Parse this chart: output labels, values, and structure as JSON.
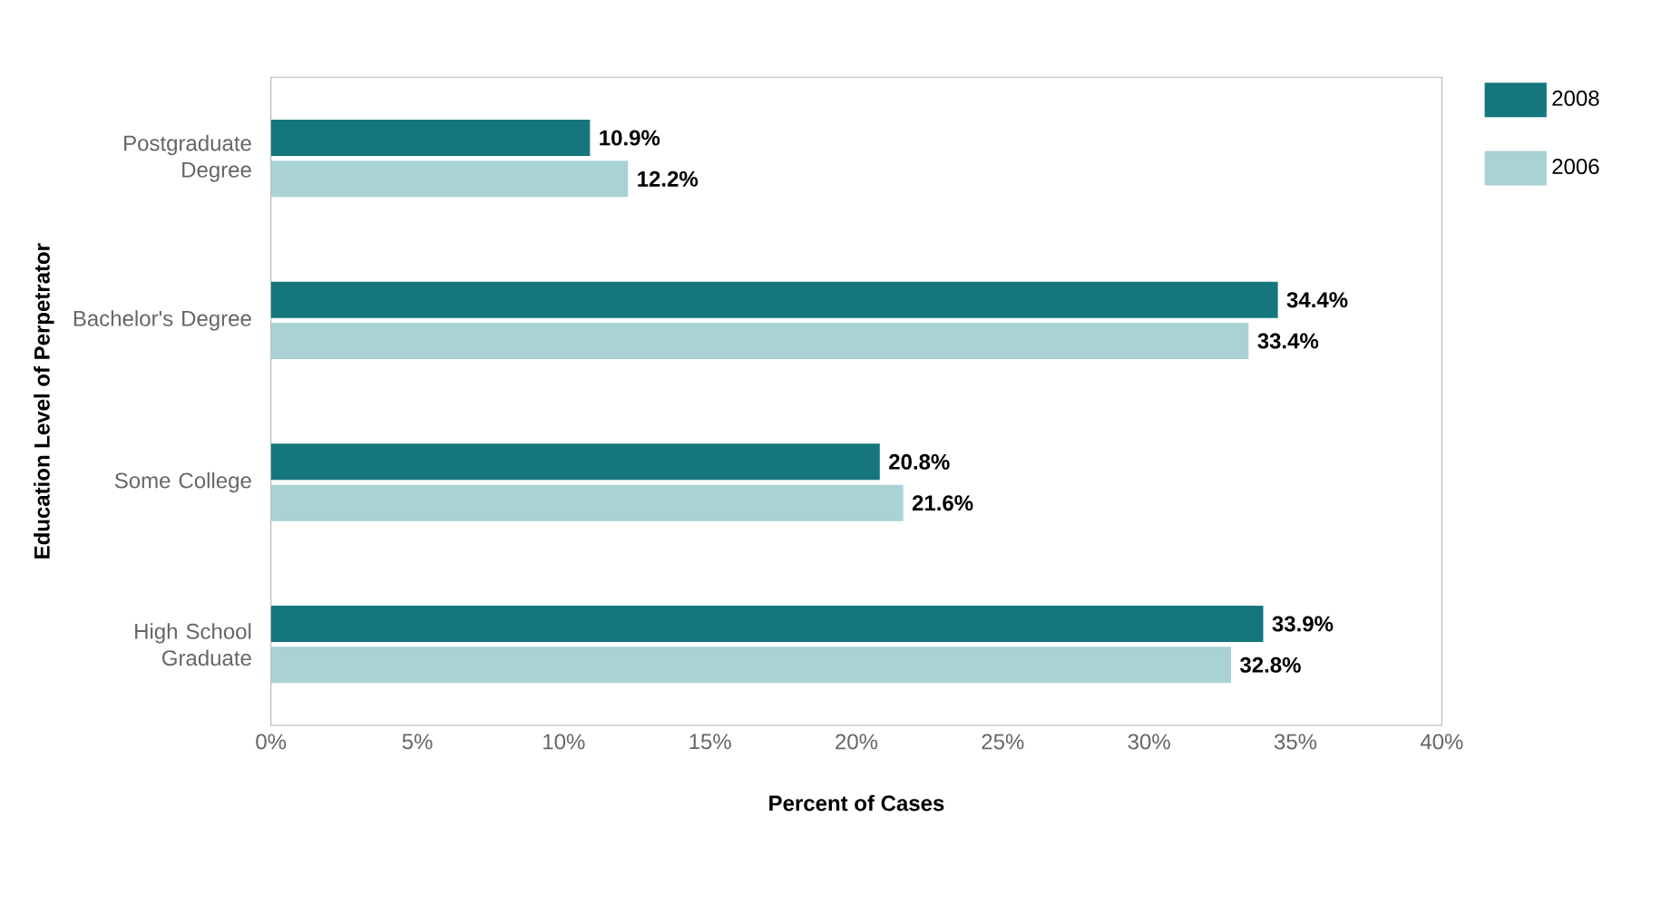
{
  "chart_data": {
    "type": "bar",
    "orientation": "horizontal",
    "categories": [
      "Postgraduate Degree",
      "Bachelor's Degree",
      "Some College",
      "High School Graduate"
    ],
    "series": [
      {
        "name": "2008",
        "color": "#16767e",
        "values": [
          10.9,
          34.4,
          20.8,
          33.9
        ],
        "value_labels": [
          "10.9%",
          "34.4%",
          "20.8%",
          "33.9%"
        ]
      },
      {
        "name": "2006",
        "color": "#a9d2d5",
        "values": [
          12.2,
          33.4,
          21.6,
          32.8
        ],
        "value_labels": [
          "12.2%",
          "33.4%",
          "21.6%",
          "32.8%"
        ]
      }
    ],
    "xlabel": "Percent of Cases",
    "ylabel": "Education Level of Perpetrator",
    "xlim": [
      0,
      40
    ],
    "xticks": [
      {
        "value": 0,
        "label": "0%"
      },
      {
        "value": 5,
        "label": "5%"
      },
      {
        "value": 10,
        "label": "10%"
      },
      {
        "value": 15,
        "label": "15%"
      },
      {
        "value": 20,
        "label": "20%"
      },
      {
        "value": 25,
        "label": "25%"
      },
      {
        "value": 30,
        "label": "30%"
      },
      {
        "value": 35,
        "label": "35%"
      },
      {
        "value": 40,
        "label": "40%"
      }
    ],
    "legend": "top right",
    "grid": false
  }
}
